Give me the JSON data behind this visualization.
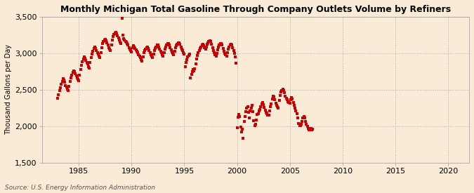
{
  "title": "Monthly Michigan Total Gasoline Through Company Outlets Volume by Refiners",
  "ylabel": "Thousand Gallons per Day",
  "source": "Source: U.S. Energy Information Administration",
  "background_color": "#faebd7",
  "marker_color": "#cc0000",
  "xlim": [
    1981.5,
    2022
  ],
  "ylim": [
    1500,
    3500
  ],
  "xticks": [
    1985,
    1990,
    1995,
    2000,
    2005,
    2010,
    2015,
    2020
  ],
  "yticks": [
    1500,
    2000,
    2500,
    3000,
    3500
  ],
  "data": [
    [
      1983.0,
      2380
    ],
    [
      1983.08,
      2430
    ],
    [
      1983.17,
      2490
    ],
    [
      1983.25,
      2530
    ],
    [
      1983.33,
      2580
    ],
    [
      1983.42,
      2610
    ],
    [
      1983.5,
      2650
    ],
    [
      1983.58,
      2630
    ],
    [
      1983.67,
      2600
    ],
    [
      1983.75,
      2560
    ],
    [
      1983.83,
      2540
    ],
    [
      1983.92,
      2510
    ],
    [
      1984.0,
      2490
    ],
    [
      1984.08,
      2550
    ],
    [
      1984.17,
      2610
    ],
    [
      1984.25,
      2660
    ],
    [
      1984.33,
      2700
    ],
    [
      1984.42,
      2740
    ],
    [
      1984.5,
      2760
    ],
    [
      1984.58,
      2750
    ],
    [
      1984.67,
      2720
    ],
    [
      1984.75,
      2690
    ],
    [
      1984.83,
      2660
    ],
    [
      1984.92,
      2640
    ],
    [
      1985.0,
      2620
    ],
    [
      1985.08,
      2700
    ],
    [
      1985.17,
      2780
    ],
    [
      1985.25,
      2840
    ],
    [
      1985.33,
      2880
    ],
    [
      1985.42,
      2920
    ],
    [
      1985.5,
      2950
    ],
    [
      1985.58,
      2930
    ],
    [
      1985.67,
      2900
    ],
    [
      1985.75,
      2870
    ],
    [
      1985.83,
      2850
    ],
    [
      1985.92,
      2820
    ],
    [
      1986.0,
      2800
    ],
    [
      1986.08,
      2870
    ],
    [
      1986.17,
      2940
    ],
    [
      1986.25,
      2990
    ],
    [
      1986.33,
      3030
    ],
    [
      1986.42,
      3070
    ],
    [
      1986.5,
      3090
    ],
    [
      1986.58,
      3070
    ],
    [
      1986.67,
      3040
    ],
    [
      1986.75,
      3010
    ],
    [
      1986.83,
      2990
    ],
    [
      1986.92,
      2960
    ],
    [
      1987.0,
      2940
    ],
    [
      1987.08,
      3010
    ],
    [
      1987.17,
      3080
    ],
    [
      1987.25,
      3130
    ],
    [
      1987.33,
      3160
    ],
    [
      1987.42,
      3180
    ],
    [
      1987.5,
      3190
    ],
    [
      1987.58,
      3170
    ],
    [
      1987.67,
      3140
    ],
    [
      1987.75,
      3110
    ],
    [
      1987.83,
      3080
    ],
    [
      1987.92,
      3060
    ],
    [
      1988.0,
      3040
    ],
    [
      1988.08,
      3110
    ],
    [
      1988.17,
      3180
    ],
    [
      1988.25,
      3230
    ],
    [
      1988.33,
      3260
    ],
    [
      1988.42,
      3280
    ],
    [
      1988.5,
      3290
    ],
    [
      1988.58,
      3270
    ],
    [
      1988.67,
      3240
    ],
    [
      1988.75,
      3210
    ],
    [
      1988.83,
      3180
    ],
    [
      1988.92,
      3150
    ],
    [
      1989.0,
      3130
    ],
    [
      1989.08,
      3480
    ],
    [
      1989.17,
      3250
    ],
    [
      1989.25,
      3200
    ],
    [
      1989.33,
      3180
    ],
    [
      1989.42,
      3160
    ],
    [
      1989.5,
      3150
    ],
    [
      1989.58,
      3130
    ],
    [
      1989.67,
      3110
    ],
    [
      1989.75,
      3080
    ],
    [
      1989.83,
      3060
    ],
    [
      1989.92,
      3040
    ],
    [
      1990.0,
      3020
    ],
    [
      1990.08,
      3080
    ],
    [
      1990.17,
      3100
    ],
    [
      1990.25,
      3090
    ],
    [
      1990.33,
      3070
    ],
    [
      1990.42,
      3050
    ],
    [
      1990.5,
      3030
    ],
    [
      1990.58,
      3010
    ],
    [
      1990.67,
      2980
    ],
    [
      1990.75,
      2960
    ],
    [
      1990.83,
      2940
    ],
    [
      1990.92,
      2910
    ],
    [
      1991.0,
      2890
    ],
    [
      1991.08,
      2950
    ],
    [
      1991.17,
      3010
    ],
    [
      1991.25,
      3040
    ],
    [
      1991.33,
      3060
    ],
    [
      1991.42,
      3080
    ],
    [
      1991.5,
      3090
    ],
    [
      1991.58,
      3070
    ],
    [
      1991.67,
      3040
    ],
    [
      1991.75,
      3010
    ],
    [
      1991.83,
      2980
    ],
    [
      1991.92,
      2960
    ],
    [
      1992.0,
      2940
    ],
    [
      1992.08,
      2990
    ],
    [
      1992.17,
      3040
    ],
    [
      1992.25,
      3070
    ],
    [
      1992.33,
      3090
    ],
    [
      1992.42,
      3110
    ],
    [
      1992.5,
      3110
    ],
    [
      1992.58,
      3090
    ],
    [
      1992.67,
      3060
    ],
    [
      1992.75,
      3030
    ],
    [
      1992.83,
      3010
    ],
    [
      1992.92,
      2980
    ],
    [
      1993.0,
      2960
    ],
    [
      1993.08,
      3010
    ],
    [
      1993.17,
      3060
    ],
    [
      1993.25,
      3090
    ],
    [
      1993.33,
      3110
    ],
    [
      1993.42,
      3130
    ],
    [
      1993.5,
      3130
    ],
    [
      1993.58,
      3110
    ],
    [
      1993.67,
      3080
    ],
    [
      1993.75,
      3050
    ],
    [
      1993.83,
      3020
    ],
    [
      1993.92,
      3000
    ],
    [
      1994.0,
      2980
    ],
    [
      1994.08,
      3030
    ],
    [
      1994.17,
      3080
    ],
    [
      1994.25,
      3100
    ],
    [
      1994.33,
      3120
    ],
    [
      1994.42,
      3140
    ],
    [
      1994.5,
      3140
    ],
    [
      1994.58,
      3120
    ],
    [
      1994.67,
      3090
    ],
    [
      1994.75,
      3060
    ],
    [
      1994.83,
      3040
    ],
    [
      1994.92,
      3010
    ],
    [
      1995.0,
      2990
    ],
    [
      1995.08,
      2820
    ],
    [
      1995.17,
      2870
    ],
    [
      1995.25,
      2910
    ],
    [
      1995.33,
      2950
    ],
    [
      1995.42,
      2970
    ],
    [
      1995.5,
      2990
    ],
    [
      1995.58,
      2660
    ],
    [
      1995.67,
      2710
    ],
    [
      1995.75,
      2750
    ],
    [
      1995.83,
      2780
    ],
    [
      1995.92,
      2760
    ],
    [
      1996.0,
      2790
    ],
    [
      1996.08,
      2850
    ],
    [
      1996.17,
      2920
    ],
    [
      1996.25,
      2970
    ],
    [
      1996.33,
      3010
    ],
    [
      1996.42,
      3040
    ],
    [
      1996.5,
      3070
    ],
    [
      1996.58,
      3090
    ],
    [
      1996.67,
      3110
    ],
    [
      1996.75,
      3120
    ],
    [
      1996.83,
      3100
    ],
    [
      1996.92,
      3080
    ],
    [
      1997.0,
      3060
    ],
    [
      1997.08,
      3090
    ],
    [
      1997.17,
      3120
    ],
    [
      1997.25,
      3140
    ],
    [
      1997.33,
      3160
    ],
    [
      1997.42,
      3170
    ],
    [
      1997.5,
      3160
    ],
    [
      1997.58,
      3120
    ],
    [
      1997.67,
      3080
    ],
    [
      1997.75,
      3040
    ],
    [
      1997.83,
      3010
    ],
    [
      1997.92,
      2980
    ],
    [
      1998.0,
      2960
    ],
    [
      1998.08,
      3000
    ],
    [
      1998.17,
      3050
    ],
    [
      1998.25,
      3090
    ],
    [
      1998.33,
      3110
    ],
    [
      1998.42,
      3130
    ],
    [
      1998.5,
      3130
    ],
    [
      1998.58,
      3110
    ],
    [
      1998.67,
      3070
    ],
    [
      1998.75,
      3030
    ],
    [
      1998.83,
      3000
    ],
    [
      1998.92,
      2980
    ],
    [
      1999.0,
      2960
    ],
    [
      1999.08,
      3010
    ],
    [
      1999.17,
      3060
    ],
    [
      1999.25,
      3090
    ],
    [
      1999.33,
      3110
    ],
    [
      1999.42,
      3120
    ],
    [
      1999.5,
      3110
    ],
    [
      1999.58,
      3080
    ],
    [
      1999.67,
      3040
    ],
    [
      1999.75,
      3000
    ],
    [
      1999.83,
      2950
    ],
    [
      1999.92,
      2860
    ],
    [
      2000.0,
      1980
    ],
    [
      2000.08,
      2120
    ],
    [
      2000.17,
      2160
    ],
    [
      2000.25,
      2130
    ],
    [
      2000.33,
      1990
    ],
    [
      2000.42,
      1920
    ],
    [
      2000.5,
      1960
    ],
    [
      2000.58,
      1840
    ],
    [
      2000.67,
      2070
    ],
    [
      2000.75,
      2130
    ],
    [
      2000.83,
      2200
    ],
    [
      2000.92,
      2250
    ],
    [
      2001.0,
      2270
    ],
    [
      2001.08,
      2190
    ],
    [
      2001.17,
      2110
    ],
    [
      2001.25,
      2210
    ],
    [
      2001.33,
      2250
    ],
    [
      2001.42,
      2290
    ],
    [
      2001.5,
      2200
    ],
    [
      2001.58,
      2080
    ],
    [
      2001.67,
      2010
    ],
    [
      2001.75,
      2030
    ],
    [
      2001.83,
      2090
    ],
    [
      2001.92,
      2160
    ],
    [
      2002.0,
      2170
    ],
    [
      2002.08,
      2210
    ],
    [
      2002.17,
      2230
    ],
    [
      2002.25,
      2270
    ],
    [
      2002.33,
      2310
    ],
    [
      2002.42,
      2330
    ],
    [
      2002.5,
      2300
    ],
    [
      2002.58,
      2260
    ],
    [
      2002.67,
      2220
    ],
    [
      2002.75,
      2190
    ],
    [
      2002.83,
      2170
    ],
    [
      2002.92,
      2150
    ],
    [
      2003.0,
      2150
    ],
    [
      2003.08,
      2210
    ],
    [
      2003.17,
      2270
    ],
    [
      2003.25,
      2310
    ],
    [
      2003.33,
      2370
    ],
    [
      2003.42,
      2410
    ],
    [
      2003.5,
      2400
    ],
    [
      2003.58,
      2360
    ],
    [
      2003.67,
      2320
    ],
    [
      2003.75,
      2290
    ],
    [
      2003.83,
      2270
    ],
    [
      2003.92,
      2250
    ],
    [
      2004.0,
      2350
    ],
    [
      2004.08,
      2420
    ],
    [
      2004.17,
      2470
    ],
    [
      2004.25,
      2490
    ],
    [
      2004.33,
      2510
    ],
    [
      2004.42,
      2490
    ],
    [
      2004.5,
      2460
    ],
    [
      2004.58,
      2410
    ],
    [
      2004.67,
      2380
    ],
    [
      2004.75,
      2360
    ],
    [
      2004.83,
      2340
    ],
    [
      2004.92,
      2330
    ],
    [
      2005.0,
      2320
    ],
    [
      2005.08,
      2360
    ],
    [
      2005.17,
      2390
    ],
    [
      2005.25,
      2370
    ],
    [
      2005.33,
      2330
    ],
    [
      2005.42,
      2290
    ],
    [
      2005.5,
      2250
    ],
    [
      2005.58,
      2210
    ],
    [
      2005.67,
      2170
    ],
    [
      2005.75,
      2110
    ],
    [
      2005.83,
      2040
    ],
    [
      2005.92,
      2010
    ],
    [
      2006.0,
      2010
    ],
    [
      2006.08,
      2030
    ],
    [
      2006.17,
      2070
    ],
    [
      2006.25,
      2110
    ],
    [
      2006.33,
      2130
    ],
    [
      2006.42,
      2110
    ],
    [
      2006.5,
      2070
    ],
    [
      2006.58,
      2030
    ],
    [
      2006.67,
      2000
    ],
    [
      2006.75,
      1970
    ],
    [
      2006.83,
      1950
    ],
    [
      2006.92,
      1960
    ],
    [
      2007.0,
      1970
    ],
    [
      2007.08,
      1950
    ],
    [
      2007.17,
      1960
    ]
  ]
}
